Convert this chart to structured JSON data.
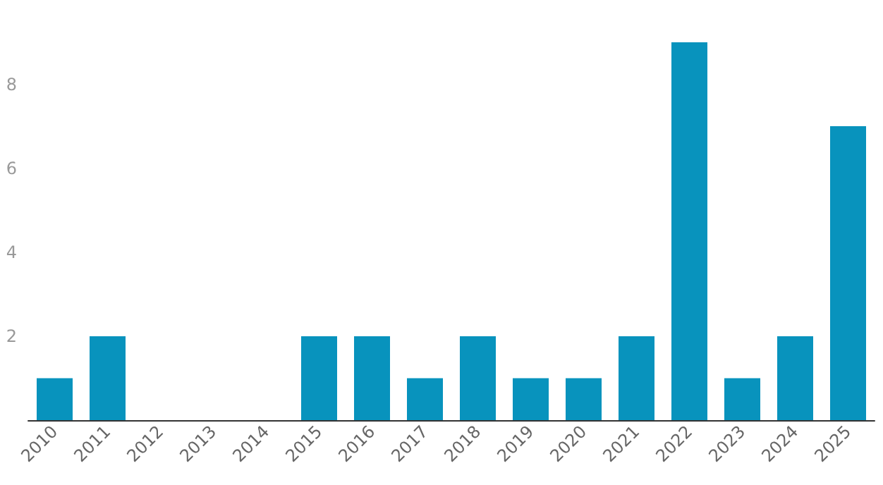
{
  "chart_data": {
    "type": "bar",
    "categories": [
      "2010",
      "2011",
      "2012",
      "2013",
      "2014",
      "2015",
      "2016",
      "2017",
      "2018",
      "2019",
      "2020",
      "2021",
      "2022",
      "2023",
      "2024",
      "2025"
    ],
    "values": [
      1,
      2,
      0,
      0,
      0,
      2,
      2,
      1,
      2,
      1,
      1,
      2,
      9,
      1,
      2,
      7
    ],
    "color": "#0893bd",
    "ylim": [
      0,
      9
    ],
    "yticks": [
      2,
      4,
      6,
      8
    ],
    "grid": false
  }
}
